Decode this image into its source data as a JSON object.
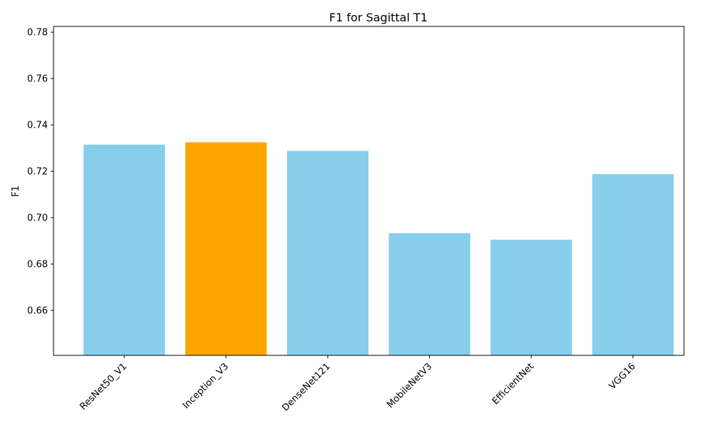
{
  "chart_data": {
    "type": "bar",
    "title": "F1 for Sagittal T1",
    "xlabel": "",
    "ylabel": "F1",
    "categories": [
      "ResNet50_V1",
      "Inception_V3",
      "DenseNet121",
      "MobileNetV3",
      "EfficientNet",
      "VGG16"
    ],
    "values": [
      0.7315,
      0.7325,
      0.7288,
      0.6933,
      0.6905,
      0.7188
    ],
    "highlight_index": 1,
    "colors": {
      "default": "#87ceeb",
      "highlight": "#ffa500"
    },
    "ylim": [
      0.6406,
      0.7825
    ],
    "yticks": [
      0.66,
      0.68,
      0.7,
      0.72,
      0.74,
      0.76,
      0.78
    ],
    "ytick_labels": [
      "0.66",
      "0.68",
      "0.70",
      "0.72",
      "0.74",
      "0.76",
      "0.78"
    ],
    "grid": false,
    "legend": "none"
  }
}
